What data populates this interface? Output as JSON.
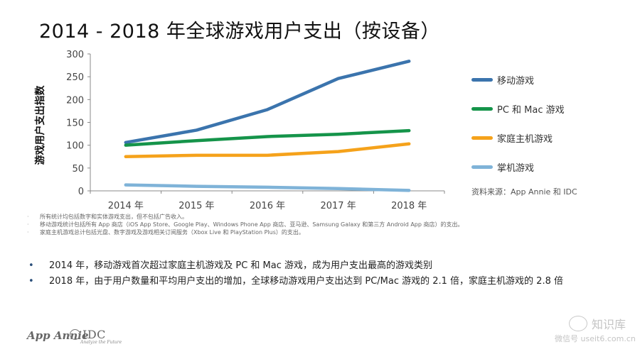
{
  "title": "2014 - 2018 年全球游戏用户支出（按设备）",
  "chart_data": {
    "type": "line",
    "x": [
      "2014 年",
      "2015 年",
      "2016 年",
      "2017 年",
      "2018 年"
    ],
    "ylabel": "游戏用户支出指数",
    "ylim": [
      0,
      300
    ],
    "yticks": [
      "0",
      "50",
      "100",
      "150",
      "200",
      "250",
      "300"
    ],
    "grid": false,
    "legend_position": "right",
    "series": [
      {
        "name": "移动游戏",
        "color": "#3b74ad",
        "values": [
          106,
          133,
          178,
          246,
          284
        ]
      },
      {
        "name": "PC 和 Mac 游戏",
        "color": "#15944a",
        "values": [
          100,
          110,
          119,
          124,
          132
        ]
      },
      {
        "name": "家庭主机游戏",
        "color": "#f5a21b",
        "values": [
          75,
          78,
          78,
          86,
          103
        ]
      },
      {
        "name": "掌机游戏",
        "color": "#7fb3d8",
        "values": [
          13,
          10,
          8,
          5,
          1
        ]
      }
    ]
  },
  "source": "资料来源：App Annie 和 IDC",
  "footnotes": [
    "所有统计均包括数字和实体游戏支出，但不包括广告收入。",
    "移动游戏统计包括所有 App 商店（iOS App Store、Google Play、Windows Phone App 商店、亚马逊、Samsung Galaxy 和第三方 Android App 商店）的支出。",
    "家庭主机游戏总计包括光盘、数字游戏及游戏相关订阅服务（Xbox Live 和 PlayStation Plus）的支出。"
  ],
  "bullets": [
    "2014 年，移动游戏首次超过家庭主机游戏及 PC 和 Mac 游戏，成为用户支出最高的游戏类别",
    "2018 年，由于用户数量和平均用户支出的增加，全球移动游戏用户支出达到 PC/Mac 游戏的 2.1 倍，家庭主机游戏的 2.8 倍"
  ],
  "logos": {
    "appannie": "App Annie",
    "idc": "IDC",
    "idc_tagline": "Analyze the Future"
  },
  "watermark": {
    "brand": "知识库",
    "sub": "微信号 useit6.com.cn"
  }
}
